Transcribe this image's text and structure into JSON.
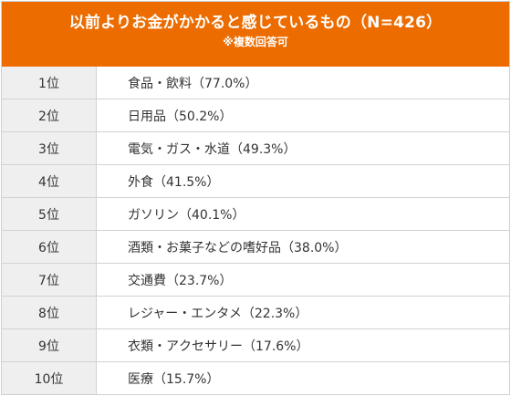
{
  "header": {
    "title": "以前よりお金がかかると感じているもの（N=426）",
    "note": "※複数回答可"
  },
  "rows": [
    {
      "rank": "1位",
      "item": "食品・飲料（77.0%）"
    },
    {
      "rank": "2位",
      "item": "日用品（50.2%）"
    },
    {
      "rank": "3位",
      "item": "電気・ガス・水道（49.3%）"
    },
    {
      "rank": "4位",
      "item": "外食（41.5%）"
    },
    {
      "rank": "5位",
      "item": "ガソリン（40.1%）"
    },
    {
      "rank": "6位",
      "item": "酒類・お菓子などの嗜好品（38.0%）"
    },
    {
      "rank": "7位",
      "item": "交通費（23.7%）"
    },
    {
      "rank": "8位",
      "item": "レジャー・エンタメ（22.3%）"
    },
    {
      "rank": "9位",
      "item": "衣類・アクセサリー（17.6%）"
    },
    {
      "rank": "10位",
      "item": "医療（15.7%）"
    }
  ],
  "colors": {
    "header_bg": "#ec6c00",
    "rank_bg": "#efefef",
    "border": "#d2d2d2"
  }
}
